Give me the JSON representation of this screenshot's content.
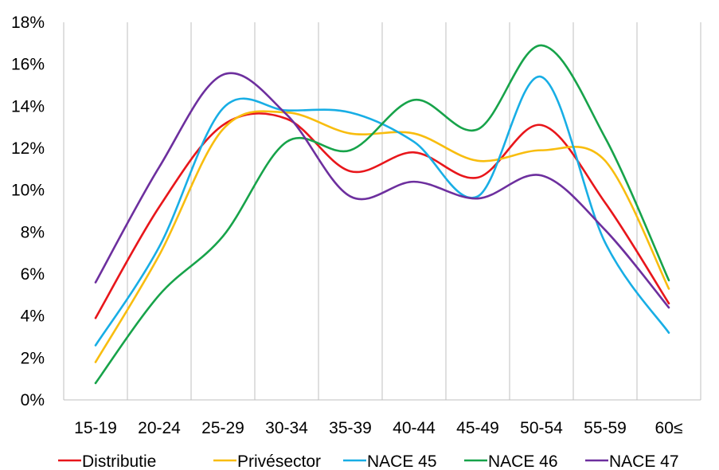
{
  "chart_data": {
    "type": "line",
    "title": "",
    "xlabel": "",
    "ylabel": "",
    "categories": [
      "15-19",
      "20-24",
      "25-29",
      "30-34",
      "35-39",
      "40-44",
      "45-49",
      "50-54",
      "55-59",
      "60≤"
    ],
    "y_ticks": [
      "0%",
      "2%",
      "4%",
      "6%",
      "8%",
      "10%",
      "12%",
      "14%",
      "16%",
      "18%"
    ],
    "ylim": [
      0,
      18
    ],
    "grid": "vertical",
    "smooth": true,
    "legend_position": "bottom",
    "series": [
      {
        "name": "Distributie",
        "color": "#e8161b",
        "values": [
          3.9,
          9.2,
          13.1,
          13.4,
          10.9,
          11.8,
          10.6,
          13.1,
          9.4,
          4.6
        ]
      },
      {
        "name": "Privésector",
        "color": "#f8bd0f",
        "values": [
          1.8,
          6.9,
          12.9,
          13.7,
          12.7,
          12.7,
          11.4,
          11.9,
          11.4,
          5.3
        ]
      },
      {
        "name": "NACE 45",
        "color": "#18aee5",
        "values": [
          2.6,
          7.3,
          13.9,
          13.8,
          13.7,
          12.3,
          9.7,
          15.4,
          7.5,
          3.2
        ]
      },
      {
        "name": "NACE 46",
        "color": "#17a34a",
        "values": [
          0.8,
          5.0,
          7.8,
          12.3,
          11.9,
          14.3,
          12.9,
          16.9,
          12.5,
          5.7
        ]
      },
      {
        "name": "NACE 47",
        "color": "#6d2f9e",
        "values": [
          5.6,
          11.1,
          15.5,
          13.6,
          9.7,
          10.4,
          9.6,
          10.7,
          8.1,
          4.4
        ]
      }
    ]
  }
}
